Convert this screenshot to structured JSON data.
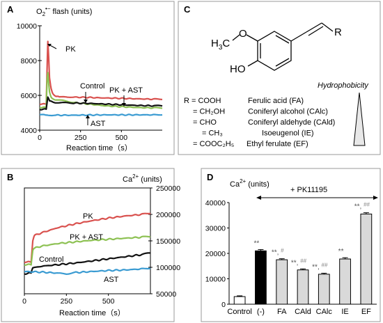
{
  "chart_data": [
    {
      "panel": "A",
      "type": "line",
      "title": "O2•− flash (units)",
      "xlabel": "Reaction time (s)",
      "ylabel": "",
      "xlim": [
        0,
        750
      ],
      "ylim": [
        4000,
        10000
      ],
      "xticks": [
        "0",
        "250",
        "500"
      ],
      "yticks": [
        "4000",
        "6000",
        "8000",
        "10000"
      ],
      "series": [
        {
          "name": "PK",
          "color": "#d9514e",
          "x": [
            0,
            40,
            45,
            50,
            55,
            60,
            70,
            80,
            100,
            120,
            150,
            200,
            300,
            400,
            500,
            600,
            700,
            750
          ],
          "y": [
            5500,
            5500,
            7500,
            9100,
            8200,
            7000,
            6400,
            6100,
            5950,
            5900,
            5900,
            5900,
            5880,
            5850,
            5830,
            5800,
            5780,
            5770
          ]
        },
        {
          "name": "PK + AST",
          "color": "#8dc153",
          "x": [
            0,
            40,
            45,
            50,
            55,
            60,
            70,
            80,
            100,
            150,
            200,
            300,
            400,
            500,
            600,
            700,
            750
          ],
          "y": [
            5300,
            5300,
            6900,
            7300,
            6700,
            6200,
            5900,
            5800,
            5750,
            5680,
            5600,
            5500,
            5400,
            5350,
            5300,
            5280,
            5270
          ]
        },
        {
          "name": "Control",
          "color": "#111111",
          "x": [
            0,
            40,
            45,
            50,
            60,
            80,
            100,
            150,
            200,
            300,
            400,
            500,
            600,
            700,
            750
          ],
          "y": [
            5200,
            5200,
            5600,
            5900,
            5700,
            5600,
            5580,
            5570,
            5560,
            5540,
            5500,
            5460,
            5420,
            5400,
            5390
          ]
        },
        {
          "name": "AST",
          "color": "#3a9bd2",
          "x": [
            0,
            40,
            50,
            100,
            200,
            300,
            400,
            500,
            600,
            700,
            750
          ],
          "y": [
            4900,
            4880,
            4870,
            4860,
            4860,
            4870,
            4880,
            4880,
            4880,
            4880,
            4880
          ]
        }
      ],
      "labels": [
        "PK",
        "Control",
        "PK + AST",
        "AST"
      ]
    },
    {
      "panel": "B",
      "type": "line",
      "title": "Ca2+ (units)",
      "xlabel": "Reaction time (s)",
      "ylabel": "",
      "xlim": [
        0,
        750
      ],
      "ylim": [
        50000,
        250000
      ],
      "xticks": [
        "0",
        "250",
        "500"
      ],
      "yticks": [
        "50000",
        "100000",
        "150000",
        "200000",
        "250000"
      ],
      "series": [
        {
          "name": "PK",
          "color": "#d9514e",
          "x": [
            0,
            40,
            50,
            60,
            100,
            200,
            300,
            400,
            500,
            600,
            700,
            750
          ],
          "y": [
            110000,
            110000,
            150000,
            160000,
            165000,
            175000,
            182000,
            188000,
            193000,
            197000,
            200000,
            202000
          ]
        },
        {
          "name": "PK + AST",
          "color": "#8dc153",
          "x": [
            0,
            40,
            50,
            60,
            100,
            200,
            300,
            400,
            500,
            600,
            700,
            750
          ],
          "y": [
            105000,
            105000,
            132000,
            136000,
            140000,
            145000,
            148000,
            151000,
            153000,
            155000,
            157000,
            158000
          ]
        },
        {
          "name": "Control",
          "color": "#111111",
          "x": [
            0,
            40,
            50,
            100,
            200,
            300,
            400,
            500,
            600,
            700,
            750
          ],
          "y": [
            88000,
            89000,
            99000,
            102000,
            105000,
            108000,
            112000,
            116000,
            120000,
            124000,
            127000
          ]
        },
        {
          "name": "AST",
          "color": "#3a9bd2",
          "x": [
            0,
            100,
            200,
            250,
            300,
            400,
            500,
            600,
            700,
            750
          ],
          "y": [
            92000,
            91000,
            89000,
            88000,
            90000,
            92000,
            94000,
            95000,
            97000,
            98000
          ]
        }
      ],
      "labels": [
        "PK",
        "PK + AST",
        "Control",
        "AST"
      ]
    },
    {
      "panel": "D",
      "type": "bar",
      "title": "Ca2+ (units)",
      "annotation": "+ PK11195",
      "xlabel": "",
      "ylabel": "",
      "ylim": [
        0,
        40000
      ],
      "yticks": [
        "0",
        "10000",
        "20000",
        "30000",
        "40000"
      ],
      "categories": [
        "Control",
        "(-)",
        "FA",
        "CAld",
        "CAlc",
        "IE",
        "EF"
      ],
      "values": [
        3000,
        21000,
        17500,
        13500,
        11800,
        17800,
        35500
      ],
      "errors": [
        300,
        500,
        400,
        400,
        400,
        500,
        500
      ],
      "bar_colors": [
        "#ffffff",
        "#000000",
        "#d9d9d9",
        "#d9d9d9",
        "#d9d9d9",
        "#d9d9d9",
        "#d9d9d9"
      ],
      "significance": [
        "",
        "**",
        "**, #",
        "**, ##",
        "**, ##",
        "**",
        "**, ##"
      ]
    }
  ],
  "panels": {
    "a_letter": "A",
    "b_letter": "B",
    "c_letter": "C",
    "d_letter": "D"
  },
  "panel_a": {
    "title_main": "O",
    "title_sub": "2",
    "title_sup": "•−",
    "title_rest": " flash (units)",
    "xlabel": "Reaction time（s）",
    "lbl_pk": "PK",
    "lbl_control": "Control",
    "lbl_pkast": "PK + AST",
    "lbl_ast": "AST"
  },
  "panel_b": {
    "title_main": "Ca",
    "title_sup": "2+",
    "title_rest": " (units)",
    "xlabel": "Reaction time（s）",
    "lbl_pk": "PK",
    "lbl_pkast": "PK + AST",
    "lbl_control": "Control",
    "lbl_ast": "AST"
  },
  "panel_c": {
    "h3c": "H",
    "h3c_sub": "3",
    "h3c_c": "C",
    "o_label": "O",
    "ho_label": "HO",
    "r_label": "R",
    "hydrophobicity": "Hydrophobicity",
    "rows": [
      {
        "r": "R = COOH",
        "name": "Ferulic acid (FA)"
      },
      {
        "r": "= CH₂OH",
        "name": "Coniferyl alcohol (CAlc)"
      },
      {
        "r": "= CHO",
        "name": "Coniferyl aldehyde (CAld)"
      },
      {
        "r": "= CH₃",
        "name": "Isoeugenol (IE)"
      },
      {
        "r": "= COOC₂H₅",
        "name": "Ethyl ferulate (EF)"
      }
    ]
  },
  "panel_d": {
    "title_main": "Ca",
    "title_sup": "2+",
    "title_rest": "  (units)",
    "annotation": "+ PK11195"
  }
}
